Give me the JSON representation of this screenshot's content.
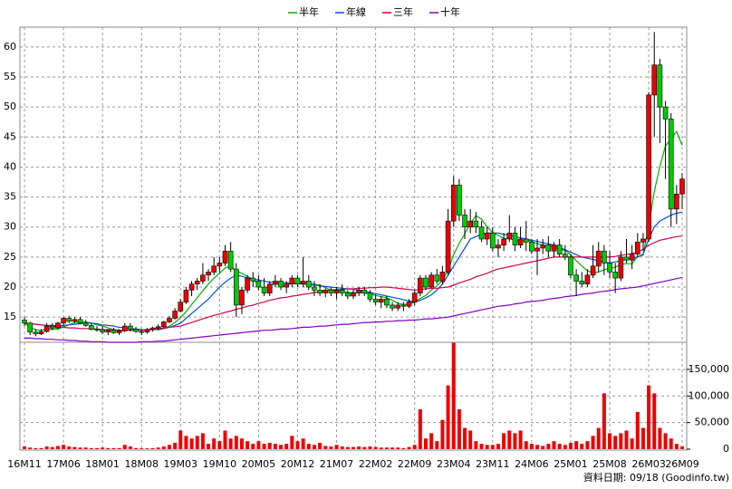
{
  "chart_data": {
    "type": "candlestick",
    "categories": [
      "16M11",
      null,
      null,
      null,
      null,
      null,
      null,
      "17M06",
      null,
      null,
      null,
      null,
      null,
      null,
      "18M01",
      null,
      null,
      null,
      null,
      null,
      null,
      "18M08",
      null,
      null,
      null,
      null,
      null,
      null,
      "19M03",
      null,
      null,
      null,
      null,
      null,
      null,
      "19M10",
      null,
      null,
      null,
      null,
      null,
      null,
      "20M05",
      null,
      null,
      null,
      null,
      null,
      null,
      "20M12",
      null,
      null,
      null,
      null,
      null,
      null,
      "21M07",
      null,
      null,
      null,
      null,
      null,
      null,
      "22M02",
      null,
      null,
      null,
      null,
      null,
      null,
      "22M09",
      null,
      null,
      null,
      null,
      null,
      null,
      "23M04",
      null,
      null,
      null,
      null,
      null,
      null,
      "23M11",
      null,
      null,
      null,
      null,
      null,
      null,
      "24M06",
      null,
      null,
      null,
      null,
      null,
      null,
      "25M01",
      null,
      null,
      null,
      null,
      null,
      null,
      "25M08",
      null,
      null,
      null,
      null,
      null,
      null,
      "26M03",
      null,
      null,
      null,
      null,
      null,
      "26M09"
    ],
    "candles": [
      [
        14.5,
        15,
        13.5,
        14
      ],
      [
        14,
        14.2,
        12,
        12.5
      ],
      [
        12.5,
        13,
        11.8,
        12.2
      ],
      [
        12.2,
        13,
        12,
        12.6
      ],
      [
        12.6,
        14,
        12.4,
        13.5
      ],
      [
        13.5,
        14,
        12.8,
        13.2
      ],
      [
        13.2,
        14.2,
        13,
        14
      ],
      [
        14,
        15,
        13.6,
        14.8
      ],
      [
        14.8,
        15.2,
        14,
        14.3
      ],
      [
        14.3,
        15,
        14,
        14.6
      ],
      [
        14.6,
        15,
        13.8,
        14
      ],
      [
        14,
        14.5,
        13.4,
        13.6
      ],
      [
        13.6,
        14,
        12.8,
        13
      ],
      [
        13,
        13.5,
        12.6,
        12.9
      ],
      [
        12.9,
        13.4,
        12.2,
        12.5
      ],
      [
        12.5,
        13,
        12,
        12.8
      ],
      [
        12.8,
        13.2,
        12.2,
        12.4
      ],
      [
        12.4,
        13,
        12,
        12.7
      ],
      [
        12.7,
        14,
        12.5,
        13.5
      ],
      [
        13.5,
        14,
        12.6,
        13
      ],
      [
        13,
        13.4,
        12.4,
        12.6
      ],
      [
        12.6,
        13,
        12,
        12.5
      ],
      [
        12.5,
        13.2,
        12.2,
        12.9
      ],
      [
        12.9,
        13.4,
        12.6,
        13.2
      ],
      [
        13.2,
        13.8,
        12.8,
        13.4
      ],
      [
        13.4,
        14.4,
        13.2,
        14.2
      ],
      [
        14.2,
        15.2,
        14,
        14.8
      ],
      [
        14.8,
        16.5,
        14.6,
        16
      ],
      [
        16,
        18,
        15.8,
        17.5
      ],
      [
        17.5,
        20,
        17.2,
        19.5
      ],
      [
        19.5,
        21,
        18.5,
        20.5
      ],
      [
        20.5,
        21.5,
        19.5,
        21
      ],
      [
        21,
        24,
        20.5,
        22
      ],
      [
        22,
        23,
        21,
        22.5
      ],
      [
        22.5,
        25,
        22,
        23.5
      ],
      [
        23.5,
        25,
        22.5,
        24
      ],
      [
        24,
        27,
        23.5,
        26
      ],
      [
        26,
        27.5,
        22.5,
        23
      ],
      [
        23,
        24,
        15,
        17
      ],
      [
        17,
        20,
        15.5,
        19.5
      ],
      [
        19.5,
        22,
        19,
        21.5
      ],
      [
        21.5,
        22.5,
        20,
        21
      ],
      [
        21,
        22,
        19.5,
        20
      ],
      [
        20,
        21.5,
        18.5,
        19
      ],
      [
        19,
        21,
        18.5,
        20.5
      ],
      [
        20.5,
        22,
        20,
        21
      ],
      [
        21,
        21.5,
        19.5,
        20
      ],
      [
        20,
        21,
        19,
        20.5
      ],
      [
        20.5,
        22,
        20,
        21.5
      ],
      [
        21.5,
        22,
        20,
        20.5
      ],
      [
        20.5,
        25,
        20,
        21
      ],
      [
        21,
        22,
        19.5,
        20
      ],
      [
        20,
        21,
        18.5,
        19.5
      ],
      [
        19.5,
        20.5,
        18.5,
        19
      ],
      [
        19,
        19.8,
        18.3,
        19.5
      ],
      [
        19.5,
        20,
        18.5,
        19
      ],
      [
        19,
        20,
        18,
        19.5
      ],
      [
        19.5,
        20.5,
        18.5,
        19
      ],
      [
        19,
        19.5,
        18,
        18.5
      ],
      [
        18.5,
        19.5,
        18,
        19
      ],
      [
        19,
        20,
        18.5,
        19.5
      ],
      [
        19.5,
        20,
        18.5,
        19
      ],
      [
        19,
        19.5,
        17.5,
        18
      ],
      [
        18,
        18.8,
        17,
        17.5
      ],
      [
        17.5,
        18.5,
        16.5,
        18
      ],
      [
        18,
        18.5,
        16.5,
        17
      ],
      [
        17,
        17.5,
        16,
        16.5
      ],
      [
        16.5,
        17.5,
        16,
        17
      ],
      [
        17,
        17.5,
        16,
        16.8
      ],
      [
        16.8,
        18,
        16.5,
        17.5
      ],
      [
        17.5,
        19.5,
        17,
        19
      ],
      [
        19,
        22,
        18.5,
        21.5
      ],
      [
        21.5,
        22,
        19.5,
        20
      ],
      [
        20,
        22.5,
        19.8,
        22
      ],
      [
        22,
        23,
        20.5,
        21
      ],
      [
        21,
        23.5,
        20.5,
        22.5
      ],
      [
        22.5,
        33,
        22,
        31
      ],
      [
        31,
        38.5,
        30,
        37
      ],
      [
        37,
        38,
        31,
        32
      ],
      [
        32,
        33,
        28,
        30
      ],
      [
        30,
        33,
        29,
        31
      ],
      [
        31,
        32.5,
        29,
        30
      ],
      [
        30,
        31,
        27.5,
        28
      ],
      [
        28,
        30,
        27,
        29
      ],
      [
        29,
        30,
        26,
        26.5
      ],
      [
        26.5,
        28,
        25,
        27
      ],
      [
        27,
        29,
        26,
        28
      ],
      [
        28,
        32,
        27.5,
        29
      ],
      [
        29,
        30,
        26,
        27
      ],
      [
        27,
        30,
        26.5,
        28
      ],
      [
        28,
        31,
        26,
        27.5
      ],
      [
        27.5,
        28,
        25.5,
        26
      ],
      [
        26,
        28,
        22,
        26.5
      ],
      [
        26.5,
        28,
        25.5,
        27
      ],
      [
        27,
        28.5,
        25,
        26
      ],
      [
        26,
        27.5,
        25,
        27
      ],
      [
        27,
        28,
        25,
        25.5
      ],
      [
        25.5,
        27,
        24.5,
        25
      ],
      [
        25,
        25.5,
        21.5,
        22
      ],
      [
        22,
        23,
        18.5,
        21
      ],
      [
        21,
        22.5,
        20,
        20.5
      ],
      [
        20.5,
        23,
        20,
        22
      ],
      [
        22,
        27,
        21.5,
        23.5
      ],
      [
        23.5,
        27.5,
        22.5,
        26
      ],
      [
        26,
        27,
        22,
        24
      ],
      [
        24,
        26,
        21.5,
        22.5
      ],
      [
        22.5,
        24,
        19,
        21.5
      ],
      [
        21.5,
        26,
        21,
        25
      ],
      [
        25,
        28,
        24,
        24.5
      ],
      [
        24.5,
        27,
        23,
        25.5
      ],
      [
        25.5,
        29,
        25,
        27.5
      ],
      [
        27.5,
        29,
        26,
        28
      ],
      [
        28,
        52.5,
        27.5,
        52
      ],
      [
        52,
        62.5,
        45,
        57
      ],
      [
        57,
        58,
        44,
        50
      ],
      [
        50,
        51,
        38,
        48
      ],
      [
        48,
        49,
        30,
        33
      ],
      [
        33,
        37,
        30.5,
        35.5
      ],
      [
        35.5,
        39,
        33,
        38
      ]
    ],
    "up_color": "#ee0000",
    "down_color": "#00cc00",
    "ylim": [
      10.8,
      63.3
    ],
    "yticks": [
      15,
      20,
      25,
      30,
      35,
      40,
      45,
      50,
      55,
      60
    ],
    "grid": true,
    "legend": "top",
    "series": [
      {
        "name": "半年",
        "color": "#00b000",
        "values": [
          14,
          13.3,
          12.9,
          12.8,
          13,
          13,
          13,
          13.4,
          13.7,
          14.1,
          14.2,
          14.2,
          14,
          13.7,
          13.5,
          13.2,
          12.9,
          12.7,
          12.8,
          12.8,
          12.8,
          12.8,
          12.9,
          13,
          12.9,
          13.1,
          13.5,
          14.1,
          14.9,
          15.9,
          17.1,
          18.2,
          19.4,
          20.5,
          21.5,
          22.3,
          23.2,
          23.5,
          22.7,
          22.3,
          21.8,
          21.3,
          20.3,
          19.7,
          20.3,
          20.5,
          20.3,
          20.3,
          20.6,
          20.7,
          20.8,
          20.6,
          20.5,
          20.3,
          19.9,
          19.5,
          19.4,
          19.3,
          19.1,
          19.1,
          19.1,
          19,
          18.9,
          18.6,
          18.4,
          18.2,
          17.8,
          17.3,
          17.1,
          17.1,
          17.5,
          18.1,
          18.6,
          19.5,
          20.2,
          21.1,
          22.8,
          25.4,
          27.3,
          28.9,
          30.6,
          31.9,
          31.3,
          30,
          29.1,
          28.6,
          28.1,
          28.1,
          27.8,
          27.6,
          27.8,
          27.6,
          27.2,
          27,
          26.8,
          26.7,
          26.3,
          26.1,
          25.4,
          24.4,
          23.5,
          22.7,
          22.4,
          22.5,
          22.9,
          23.1,
          23.3,
          23.8,
          23.9,
          23.9,
          25.1,
          25.3,
          30.2,
          35.9,
          40.1,
          43.5,
          44.7,
          45.9,
          43.6
        ]
      },
      {
        "name": "年線",
        "color": "#0050e0",
        "values": [
          14,
          13.9,
          13.8,
          13.7,
          13.6,
          13.6,
          13.5,
          13.6,
          13.7,
          13.8,
          13.9,
          14,
          14,
          13.9,
          13.7,
          13.6,
          13.5,
          13.3,
          13.2,
          13.1,
          13,
          12.9,
          12.9,
          12.9,
          13,
          13.1,
          13.3,
          13.6,
          14,
          14.8,
          15.6,
          16.4,
          17.2,
          18,
          19,
          20,
          20.8,
          21.5,
          22,
          21.8,
          21.5,
          21.3,
          21.2,
          21,
          20.8,
          20.8,
          20.7,
          20.7,
          20.6,
          20.6,
          20.5,
          20.4,
          20.3,
          20.2,
          20.1,
          20,
          19.9,
          19.8,
          19.7,
          19.6,
          19.5,
          19.3,
          19.1,
          18.9,
          18.7,
          18.5,
          18.3,
          18.1,
          17.9,
          17.7,
          17.5,
          17.8,
          18.2,
          18.7,
          19.5,
          20.5,
          22,
          23.5,
          25,
          26.5,
          28,
          28.4,
          28.8,
          29,
          29,
          29,
          28.8,
          28.6,
          28.4,
          28.2,
          28,
          27.8,
          27.6,
          27.4,
          27.2,
          27,
          26.6,
          26.2,
          25.8,
          25.4,
          25,
          24.8,
          24.6,
          24.4,
          24.2,
          24,
          24.2,
          24.4,
          24.6,
          24.8,
          25,
          25.5,
          28,
          30,
          31,
          31.5,
          32,
          32.3,
          32.5
        ]
      },
      {
        "name": "三年",
        "color": "#d0004a",
        "values": [
          14,
          13.9,
          13.8,
          13.7,
          13.6,
          13.5,
          13.4,
          13.3,
          13.2,
          13.2,
          13.1,
          13.1,
          13,
          13,
          12.9,
          12.9,
          12.9,
          12.8,
          12.8,
          12.8,
          12.8,
          12.9,
          12.9,
          13,
          13.1,
          13.2,
          13.3,
          13.4,
          13.5,
          13.8,
          14.1,
          14.4,
          14.7,
          15,
          15.3,
          15.5,
          15.8,
          16,
          16.3,
          16.5,
          16.8,
          17,
          17.3,
          17.5,
          17.8,
          18,
          18.2,
          18.3,
          18.5,
          18.6,
          18.8,
          18.9,
          19.1,
          19.2,
          19.4,
          19.5,
          19.6,
          19.6,
          19.7,
          19.7,
          19.8,
          19.8,
          19.9,
          19.9,
          20,
          20,
          19.9,
          19.8,
          19.7,
          19.6,
          19.5,
          19.6,
          19.7,
          19.8,
          19.8,
          19.9,
          20,
          20.3,
          20.7,
          21,
          21.3,
          21.7,
          22,
          22.3,
          22.7,
          23,
          23.2,
          23.4,
          23.6,
          23.8,
          24,
          24.2,
          24.4,
          24.6,
          24.8,
          25,
          25,
          25,
          25,
          25,
          25,
          25,
          25,
          25,
          25,
          25,
          25.1,
          25.3,
          25.4,
          25.6,
          25.8,
          26.3,
          27,
          27.4,
          27.8,
          28,
          28.2,
          28.4,
          28.5
        ]
      },
      {
        "name": "十年",
        "color": "#8000c0",
        "values": [
          11.5,
          11.5,
          11.4,
          11.4,
          11.3,
          11.3,
          11.2,
          11.2,
          11.1,
          11.1,
          11,
          11,
          10.9,
          10.9,
          10.9,
          10.8,
          10.8,
          10.8,
          10.8,
          10.8,
          10.8,
          10.9,
          10.9,
          10.9,
          11,
          11,
          11.1,
          11.2,
          11.3,
          11.4,
          11.5,
          11.6,
          11.7,
          11.8,
          11.9,
          12,
          12.1,
          12.2,
          12.3,
          12.4,
          12.5,
          12.6,
          12.7,
          12.8,
          12.8,
          12.9,
          13,
          13,
          13.1,
          13.2,
          13.3,
          13.3,
          13.4,
          13.5,
          13.5,
          13.6,
          13.7,
          13.8,
          13.8,
          13.9,
          14,
          14.1,
          14.1,
          14.2,
          14.2,
          14.3,
          14.3,
          14.4,
          14.4,
          14.5,
          14.5,
          14.6,
          14.7,
          14.7,
          14.8,
          14.9,
          15,
          15.2,
          15.4,
          15.6,
          15.8,
          16,
          16.2,
          16.4,
          16.6,
          16.8,
          16.9,
          17,
          17.2,
          17.3,
          17.5,
          17.6,
          17.7,
          17.8,
          18,
          18.1,
          18.2,
          18.4,
          18.5,
          18.6,
          18.8,
          18.9,
          19,
          19.2,
          19.3,
          19.4,
          19.6,
          19.7,
          19.8,
          19.9,
          20,
          20.2,
          20.4,
          20.6,
          20.8,
          21,
          21.2,
          21.4,
          21.6
        ]
      }
    ],
    "volume": {
      "color": "#ee0000",
      "ylim": [
        0,
        201000
      ],
      "yticks": [
        0,
        {
          "value": 50000,
          "label": "50,000"
        },
        {
          "value": 100000,
          "label": "100,000"
        },
        {
          "value": 150000,
          "label": "150,000"
        }
      ],
      "values": [
        5000,
        3000,
        2000,
        2000,
        5000,
        4000,
        6000,
        8000,
        5000,
        4000,
        3000,
        3000,
        2000,
        2000,
        3000,
        2000,
        2000,
        2000,
        8000,
        5000,
        2000,
        1500,
        1500,
        2000,
        3000,
        5000,
        8000,
        12000,
        35000,
        25000,
        20000,
        25000,
        30000,
        10000,
        20000,
        15000,
        35000,
        20000,
        25000,
        20000,
        15000,
        10000,
        15000,
        10000,
        12000,
        10000,
        8000,
        10000,
        25000,
        15000,
        20000,
        10000,
        8000,
        12000,
        6000,
        5000,
        8000,
        5000,
        4000,
        4000,
        5000,
        4000,
        5000,
        4000,
        3000,
        3000,
        3000,
        3000,
        2000,
        4000,
        8000,
        75000,
        20000,
        30000,
        15000,
        55000,
        120000,
        200000,
        75000,
        40000,
        35000,
        15000,
        10000,
        8000,
        8000,
        10000,
        30000,
        35000,
        30000,
        35000,
        15000,
        10000,
        8000,
        6000,
        10000,
        15000,
        10000,
        8000,
        12000,
        15000,
        10000,
        15000,
        25000,
        40000,
        105000,
        30000,
        25000,
        30000,
        35000,
        20000,
        70000,
        40000,
        120000,
        105000,
        40000,
        30000,
        20000,
        10000,
        5000
      ]
    },
    "source": "資料日期: 09/18 (Goodinfo.tw)"
  }
}
